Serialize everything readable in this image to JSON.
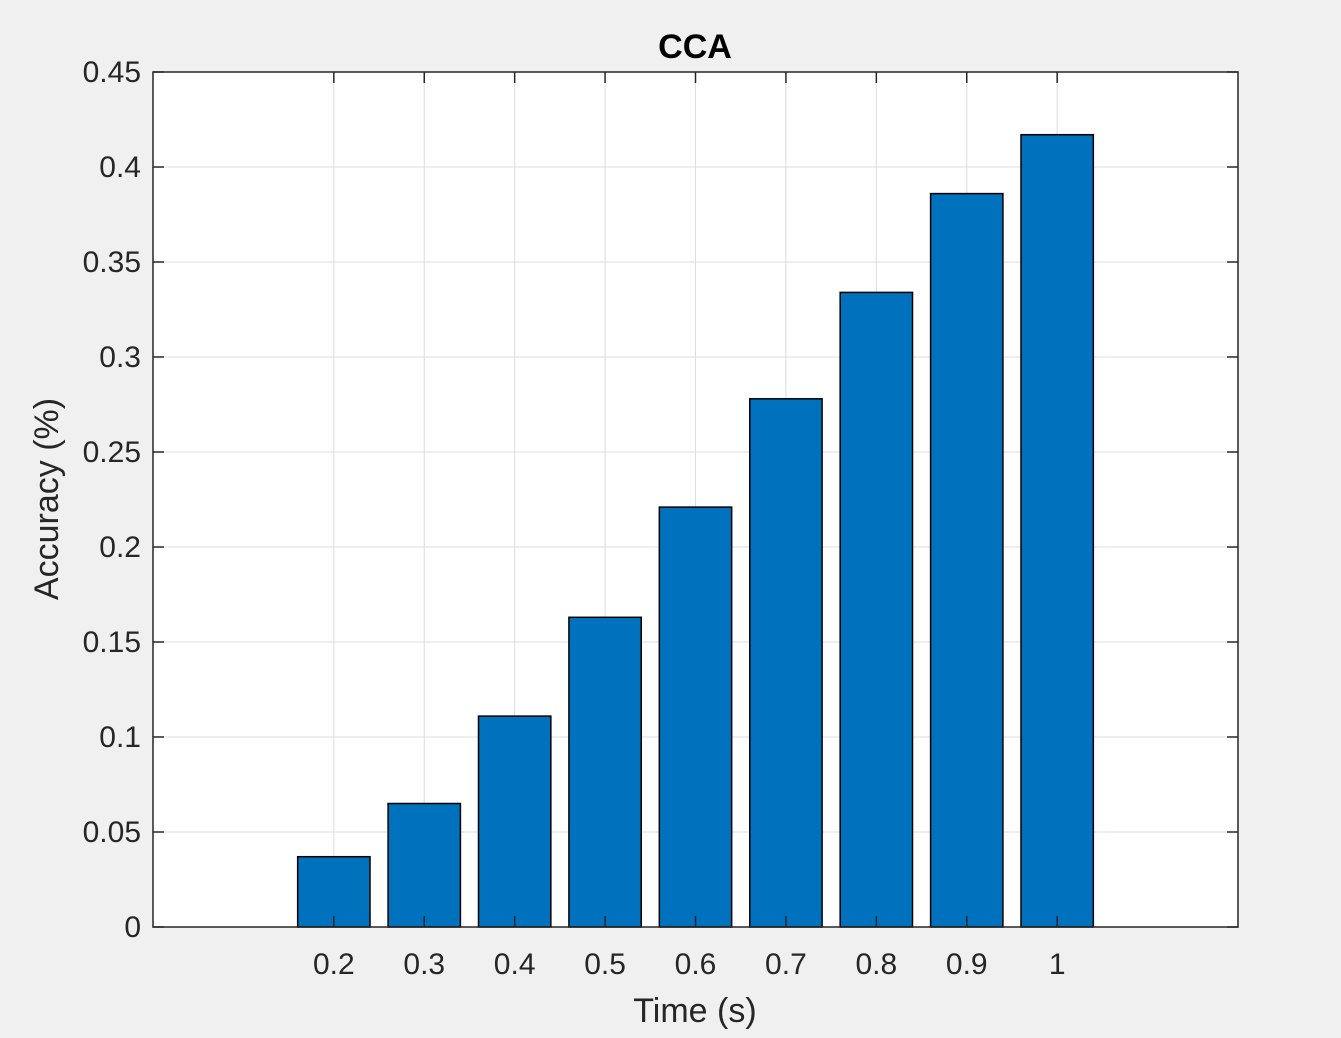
{
  "chart_data": {
    "type": "bar",
    "title": "CCA",
    "xlabel": "Time (s)",
    "ylabel": "Accuracy (%)",
    "categories": [
      "0.2",
      "0.3",
      "0.4",
      "0.5",
      "0.6",
      "0.7",
      "0.8",
      "0.9",
      "1"
    ],
    "values": [
      0.037,
      0.065,
      0.111,
      0.163,
      0.221,
      0.278,
      0.334,
      0.386,
      0.417
    ],
    "ylim": [
      0,
      0.45
    ],
    "xlim": [
      0.0,
      1.2
    ],
    "yticks": [
      "0",
      "0.05",
      "0.1",
      "0.15",
      "0.2",
      "0.25",
      "0.3",
      "0.35",
      "0.4",
      "0.45"
    ],
    "grid": true,
    "bar_color": "#0072BD",
    "edge_color": "#000000",
    "background_color": "#f0f0f0",
    "axes_color": "#ffffff"
  }
}
